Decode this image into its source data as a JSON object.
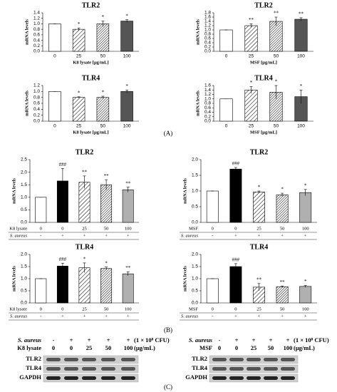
{
  "panel_labels": [
    "(A)",
    "(B)",
    "(C)"
  ],
  "chart_data": [
    {
      "type": "bar",
      "title": "TLR2",
      "y_label": "mRNA levels",
      "x_label": "K8 lysate [μg/mL]",
      "categories": [
        "0",
        "25",
        "50",
        "100"
      ],
      "values": [
        1.0,
        0.8,
        1.0,
        1.1
      ],
      "errors": [
        0,
        0.05,
        0.1,
        0.05
      ],
      "annotations": [
        null,
        "*",
        "*",
        "*"
      ],
      "fills": [
        "#ffffff",
        "hatch",
        "dense",
        "#555555"
      ],
      "ylim": [
        0,
        1.4
      ],
      "yticks": [
        {
          "value": 0,
          "label": "0.0"
        },
        0.2,
        0.4,
        0.6,
        0.8,
        {
          "value": 1,
          "label": "1.0"
        },
        1.2,
        1.4
      ]
    },
    {
      "type": "bar",
      "title": "TLR2",
      "y_label": "mRNA levels",
      "x_label": "MSF [μg/mL]",
      "categories": [
        "0",
        "25",
        "50",
        "100"
      ],
      "values": [
        1.0,
        1.2,
        1.4,
        1.5
      ],
      "errors": [
        0,
        0.08,
        0.2,
        0.07
      ],
      "annotations": [
        null,
        "**",
        "**",
        "**"
      ],
      "fills": [
        "#ffffff",
        "hatch",
        "dense",
        "#555555"
      ],
      "ylim": [
        0,
        1.8
      ],
      "yticks": [
        {
          "value": 0,
          "label": "0.0"
        },
        0.2,
        0.4,
        0.6,
        0.8,
        {
          "value": 1,
          "label": "1.0"
        },
        1.2,
        1.4,
        1.6,
        1.8
      ]
    },
    {
      "type": "bar",
      "title": "TLR4",
      "y_label": "mRNA levels",
      "x_label": "K8 lysate [μg/mL]",
      "categories": [
        "0",
        "25",
        "50",
        "100"
      ],
      "values": [
        1.0,
        0.8,
        0.8,
        1.0
      ],
      "errors": [
        0,
        0.02,
        0.04,
        0.05
      ],
      "annotations": [
        null,
        "*",
        "*",
        "*"
      ],
      "fills": [
        "#ffffff",
        "hatch",
        "dense",
        "#555555"
      ],
      "ylim": [
        0,
        1.2
      ],
      "yticks": [
        {
          "value": 0,
          "label": "0.0"
        },
        0.2,
        0.4,
        0.6,
        0.8,
        {
          "value": 1,
          "label": "1.0"
        },
        1.2
      ]
    },
    {
      "type": "bar",
      "title": "TLR4",
      "y_label": "mRNA levels",
      "x_label": "MSF [μg/mL]",
      "categories": [
        "0",
        "25",
        "50",
        "100"
      ],
      "values": [
        1.0,
        1.4,
        1.3,
        1.1
      ],
      "errors": [
        0,
        0.15,
        0.3,
        0.3
      ],
      "annotations": [
        null,
        "*",
        "*",
        "*"
      ],
      "fills": [
        "#ffffff",
        "hatch",
        "dense",
        "#555555"
      ],
      "ylim": [
        0,
        1.6
      ],
      "yticks": [
        {
          "value": 0,
          "label": "0.0"
        },
        0.2,
        0.4,
        0.6,
        0.8,
        {
          "value": 1,
          "label": "1.0"
        },
        1.2,
        1.4,
        1.6
      ]
    },
    {
      "type": "bar",
      "title": "TLR2",
      "y_label": "mRNA levels",
      "category_label": "K8 lysate",
      "categories": [
        "0",
        "0",
        "25",
        "50",
        "100"
      ],
      "treatment": {
        "label": "S. aureus",
        "values": [
          "-",
          "+",
          "+",
          "+",
          "+"
        ]
      },
      "values": [
        1.0,
        1.65,
        1.6,
        1.5,
        1.3
      ],
      "errors": [
        0,
        0.5,
        0.25,
        0.2,
        0.1
      ],
      "annotations": [
        null,
        "###",
        "**",
        "**",
        "**"
      ],
      "fills": [
        "#ffffff",
        "#000000",
        "hatch",
        "dense",
        "#b0b0b0"
      ],
      "ylim": [
        0,
        2.5
      ],
      "yticks": [
        {
          "value": 0,
          "label": "0.0"
        },
        0.5,
        {
          "value": 1,
          "label": "1.0"
        },
        1.5,
        {
          "value": 2,
          "label": "2.0"
        },
        2.5
      ]
    },
    {
      "type": "bar",
      "title": "TLR2",
      "y_label": "mRNA levels",
      "category_label": "MSF",
      "categories": [
        "0",
        "0",
        "25",
        "50",
        "100"
      ],
      "treatment": {
        "label": "S. aureus",
        "values": [
          "-",
          "+",
          "+",
          "+",
          "+"
        ]
      },
      "values": [
        1.0,
        1.7,
        0.97,
        0.88,
        0.95
      ],
      "errors": [
        0,
        0.05,
        0.03,
        0.05,
        0.1
      ],
      "annotations": [
        null,
        "###",
        "*",
        "*",
        "*"
      ],
      "fills": [
        "#ffffff",
        "#000000",
        "hatch",
        "dense",
        "#b0b0b0"
      ],
      "ylim": [
        0,
        2
      ],
      "yticks": [
        {
          "value": 0,
          "label": "0.0"
        },
        0.5,
        {
          "value": 1,
          "label": "1.0"
        },
        1.5,
        {
          "value": 2,
          "label": "2.0"
        }
      ]
    },
    {
      "type": "bar",
      "title": "TLR4",
      "y_label": "mRNA levels",
      "category_label": "K8 lysate",
      "categories": [
        "0",
        "0",
        "25",
        "50",
        "100"
      ],
      "treatment": {
        "label": "S. aureus",
        "values": [
          "-",
          "+",
          "+",
          "+",
          "+"
        ]
      },
      "values": [
        1.0,
        1.52,
        1.45,
        1.42,
        1.2
      ],
      "errors": [
        0,
        0.12,
        0.2,
        0.06,
        0.08
      ],
      "annotations": [
        null,
        "###",
        "*",
        "*",
        "**"
      ],
      "fills": [
        "#ffffff",
        "#000000",
        "hatch",
        "dense",
        "#b0b0b0"
      ],
      "ylim": [
        0,
        2
      ],
      "yticks": [
        {
          "value": 0,
          "label": "0.0"
        },
        0.5,
        {
          "value": 1,
          "label": "1.0"
        },
        1.5,
        {
          "value": 2,
          "label": "2.0"
        }
      ]
    },
    {
      "type": "bar",
      "title": "TLR4",
      "y_label": "mRNA levels",
      "category_label": "MSF",
      "categories": [
        "0",
        "0",
        "25",
        "50",
        "100"
      ],
      "treatment": {
        "label": "S. aureus",
        "values": [
          "-",
          "+",
          "+",
          "+",
          "+"
        ]
      },
      "values": [
        1.0,
        1.5,
        0.65,
        0.67,
        0.68
      ],
      "errors": [
        0,
        0.12,
        0.15,
        0.03,
        0.04
      ],
      "annotations": [
        null,
        "###",
        "**",
        "**",
        "*"
      ],
      "fills": [
        "#ffffff",
        "#000000",
        "hatch",
        "dense",
        "#b0b0b0"
      ],
      "ylim": [
        0,
        2
      ],
      "yticks": [
        {
          "value": 0,
          "label": "0.0"
        },
        0.5,
        {
          "value": 1,
          "label": "1.0"
        },
        1.5,
        {
          "value": 2,
          "label": "2.0"
        }
      ]
    }
  ],
  "blots": [
    {
      "rows": [
        {
          "label": "S. aureus",
          "values": [
            "-",
            "+",
            "+",
            "+",
            "+"
          ],
          "unit": "(1 × 10⁸ CFU)"
        },
        {
          "label": "K8 lysate",
          "values": [
            "0",
            "0",
            "25",
            "50",
            "100"
          ],
          "unit": "(μg/mL)"
        }
      ],
      "bands": [
        "TLR2",
        "TLR4",
        "GAPDH"
      ]
    },
    {
      "rows": [
        {
          "label": "S. aureus",
          "values": [
            "-",
            "+",
            "+",
            "+",
            "+"
          ],
          "unit": "(1 × 10⁸ CFU)"
        },
        {
          "label": "MSF",
          "values": [
            "0",
            "0",
            "25",
            "50",
            "100"
          ],
          "unit": "(μg/mL)"
        }
      ],
      "bands": [
        "TLR2",
        "TLR4",
        "GAPDH"
      ]
    }
  ]
}
